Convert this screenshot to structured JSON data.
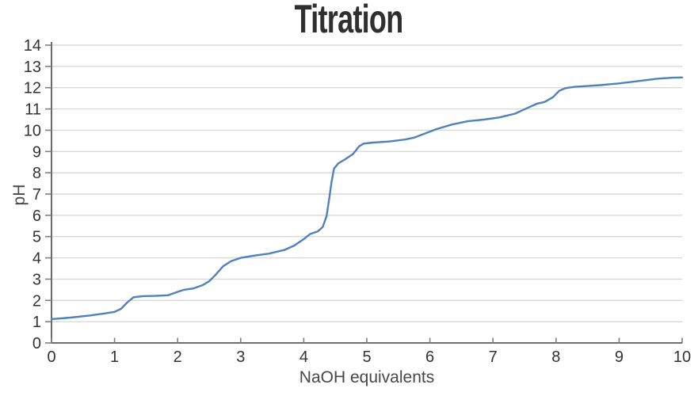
{
  "chart_data": {
    "type": "line",
    "title": "Titration",
    "xlabel": "NaOH equivalents",
    "ylabel": "pH",
    "xlim": [
      0,
      10
    ],
    "ylim": [
      0,
      14
    ],
    "x_ticks": [
      0,
      1,
      2,
      3,
      4,
      5,
      6,
      7,
      8,
      9,
      10
    ],
    "y_ticks": [
      0,
      1,
      2,
      3,
      4,
      5,
      6,
      7,
      8,
      9,
      10,
      11,
      12,
      13,
      14
    ],
    "grid": "horizontal",
    "legend": "none",
    "series": [
      {
        "name": "pH",
        "color": "#4f81bd",
        "points": [
          [
            0,
            1.12
          ],
          [
            0.3,
            1.19
          ],
          [
            0.6,
            1.29
          ],
          [
            0.85,
            1.39
          ],
          [
            1.0,
            1.46
          ],
          [
            1.1,
            1.6
          ],
          [
            1.2,
            1.9
          ],
          [
            1.3,
            2.15
          ],
          [
            1.45,
            2.2
          ],
          [
            1.65,
            2.21
          ],
          [
            1.85,
            2.24
          ],
          [
            2.0,
            2.4
          ],
          [
            2.1,
            2.5
          ],
          [
            2.25,
            2.56
          ],
          [
            2.4,
            2.72
          ],
          [
            2.5,
            2.9
          ],
          [
            2.6,
            3.2
          ],
          [
            2.72,
            3.6
          ],
          [
            2.85,
            3.85
          ],
          [
            3.0,
            4.0
          ],
          [
            3.2,
            4.1
          ],
          [
            3.45,
            4.2
          ],
          [
            3.7,
            4.38
          ],
          [
            3.85,
            4.58
          ],
          [
            4.0,
            4.88
          ],
          [
            4.1,
            5.12
          ],
          [
            4.22,
            5.24
          ],
          [
            4.3,
            5.45
          ],
          [
            4.36,
            5.95
          ],
          [
            4.4,
            6.7
          ],
          [
            4.44,
            7.55
          ],
          [
            4.48,
            8.2
          ],
          [
            4.55,
            8.45
          ],
          [
            4.65,
            8.62
          ],
          [
            4.78,
            8.88
          ],
          [
            4.88,
            9.25
          ],
          [
            4.95,
            9.37
          ],
          [
            5.1,
            9.42
          ],
          [
            5.35,
            9.47
          ],
          [
            5.6,
            9.56
          ],
          [
            5.75,
            9.65
          ],
          [
            5.9,
            9.82
          ],
          [
            6.1,
            10.05
          ],
          [
            6.35,
            10.27
          ],
          [
            6.6,
            10.42
          ],
          [
            6.85,
            10.5
          ],
          [
            7.1,
            10.6
          ],
          [
            7.35,
            10.78
          ],
          [
            7.55,
            11.05
          ],
          [
            7.7,
            11.25
          ],
          [
            7.82,
            11.33
          ],
          [
            7.95,
            11.55
          ],
          [
            8.05,
            11.85
          ],
          [
            8.15,
            11.98
          ],
          [
            8.3,
            12.04
          ],
          [
            8.45,
            12.07
          ],
          [
            8.7,
            12.12
          ],
          [
            9.0,
            12.2
          ],
          [
            9.35,
            12.33
          ],
          [
            9.6,
            12.42
          ],
          [
            9.85,
            12.47
          ],
          [
            10,
            12.48
          ]
        ]
      }
    ]
  },
  "style": {
    "background": "#ffffff",
    "title_color": "#2f2f2f",
    "axis_color": "#595959",
    "tick_color": "#7f7f7f",
    "grid_color": "#d9d9d9",
    "tick_label_color": "#333333",
    "axis_title_color": "#474747",
    "line_width": 2.4
  }
}
